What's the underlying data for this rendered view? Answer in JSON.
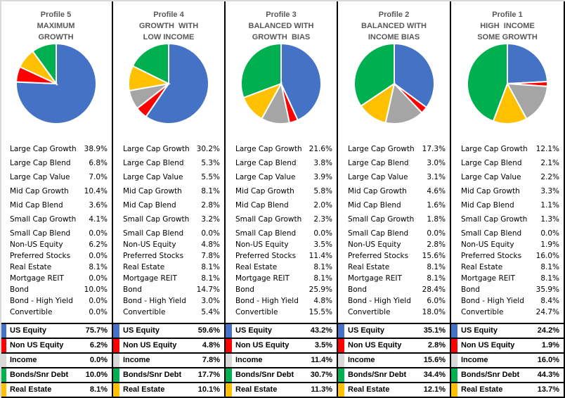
{
  "colors": {
    "us_equity": "#4472C4",
    "non_us_equity": "#FF0000",
    "income": "#A5A5A5",
    "income_marker": "#D9D9D9",
    "real_estate": "#FFC000",
    "bonds": "#00B050"
  },
  "detail_labels": [
    "Large Cap Growth",
    "Large Cap Blend",
    "Large Cap Value",
    "Mid Cap Growth",
    "Mid Cap Blend",
    "Small Cap Growth",
    "Small Cap Blend",
    "Non-US Equity",
    "Preferred Stocks",
    "Real Estate",
    "Mortgage REIT",
    "Bond",
    "Bond - High Yield",
    "Convertible"
  ],
  "summary_labels": [
    "US Equity",
    "Non US Equity",
    "Income",
    "Bonds/Snr Debt",
    "Real Estate"
  ],
  "chart_data": [
    {
      "type": "pie",
      "title": [
        "Profile 5",
        "MAXIMUM",
        "GROWTH"
      ],
      "slices": [
        {
          "name": "US Equity",
          "value": 75.7
        },
        {
          "name": "Non US Equity",
          "value": 6.2
        },
        {
          "name": "Income",
          "value": 0.0
        },
        {
          "name": "Real Estate",
          "value": 8.1
        },
        {
          "name": "Bonds/Snr Debt",
          "value": 10.0
        }
      ],
      "details": [
        "38.9%",
        "6.8%",
        "7.0%",
        "10.4%",
        "3.6%",
        "4.1%",
        "0.0%",
        "6.2%",
        "0.0%",
        "8.1%",
        "0.0%",
        "10.0%",
        "0.0%",
        "0.0%"
      ],
      "summary": [
        "75.7%",
        "6.2%",
        "0.0%",
        "10.0%",
        "8.1%"
      ]
    },
    {
      "type": "pie",
      "title": [
        "Profile 4",
        "GROWTH  WITH",
        "LOW INCOME"
      ],
      "slices": [
        {
          "name": "US Equity",
          "value": 59.6
        },
        {
          "name": "Non US Equity",
          "value": 4.8
        },
        {
          "name": "Income",
          "value": 7.8
        },
        {
          "name": "Real Estate",
          "value": 10.1
        },
        {
          "name": "Bonds/Snr Debt",
          "value": 17.7
        }
      ],
      "details": [
        "30.2%",
        "5.3%",
        "5.5%",
        "8.1%",
        "2.8%",
        "3.2%",
        "0.0%",
        "4.8%",
        "7.8%",
        "8.1%",
        "8.1%",
        "14.7%",
        "3.0%",
        "5.4%"
      ],
      "summary": [
        "59.6%",
        "4.8%",
        "7.8%",
        "17.7%",
        "10.1%"
      ]
    },
    {
      "type": "pie",
      "title": [
        "Profile 3",
        "BALANCED WITH",
        "GROWTH  BIAS"
      ],
      "slices": [
        {
          "name": "US Equity",
          "value": 43.2
        },
        {
          "name": "Non US Equity",
          "value": 3.5
        },
        {
          "name": "Income",
          "value": 11.4
        },
        {
          "name": "Real Estate",
          "value": 11.3
        },
        {
          "name": "Bonds/Snr Debt",
          "value": 30.7
        }
      ],
      "details": [
        "21.6%",
        "3.8%",
        "3.9%",
        "5.8%",
        "2.0%",
        "2.3%",
        "0.0%",
        "3.5%",
        "11.4%",
        "8.1%",
        "8.1%",
        "25.9%",
        "4.8%",
        "15.5%"
      ],
      "summary": [
        "43.2%",
        "3.5%",
        "11.4%",
        "30.7%",
        "11.3%"
      ]
    },
    {
      "type": "pie",
      "title": [
        "Profile 2",
        "BALANCED WITH",
        "INCOME BIAS"
      ],
      "slices": [
        {
          "name": "US Equity",
          "value": 35.1
        },
        {
          "name": "Non US Equity",
          "value": 2.8
        },
        {
          "name": "Income",
          "value": 15.6
        },
        {
          "name": "Real Estate",
          "value": 12.1
        },
        {
          "name": "Bonds/Snr Debt",
          "value": 34.4
        }
      ],
      "details": [
        "17.3%",
        "3.0%",
        "3.1%",
        "4.6%",
        "1.6%",
        "1.8%",
        "0.0%",
        "2.8%",
        "15.6%",
        "8.1%",
        "8.1%",
        "28.4%",
        "6.0%",
        "18.0%"
      ],
      "summary": [
        "35.1%",
        "2.8%",
        "15.6%",
        "34.4%",
        "12.1%"
      ]
    },
    {
      "type": "pie",
      "title": [
        "Profile 1",
        "HIGH  INCOME",
        "SOME GROWTH"
      ],
      "slices": [
        {
          "name": "US Equity",
          "value": 24.2
        },
        {
          "name": "Non US Equity",
          "value": 1.9
        },
        {
          "name": "Income",
          "value": 16.0
        },
        {
          "name": "Real Estate",
          "value": 13.7
        },
        {
          "name": "Bonds/Snr Debt",
          "value": 44.3
        }
      ],
      "details": [
        "12.1%",
        "2.1%",
        "2.2%",
        "3.3%",
        "1.1%",
        "1.3%",
        "0.0%",
        "1.9%",
        "16.0%",
        "8.1%",
        "8.1%",
        "35.9%",
        "8.4%",
        "24.7%"
      ],
      "summary": [
        "24.2%",
        "1.9%",
        "16.0%",
        "44.3%",
        "13.7%"
      ]
    }
  ]
}
